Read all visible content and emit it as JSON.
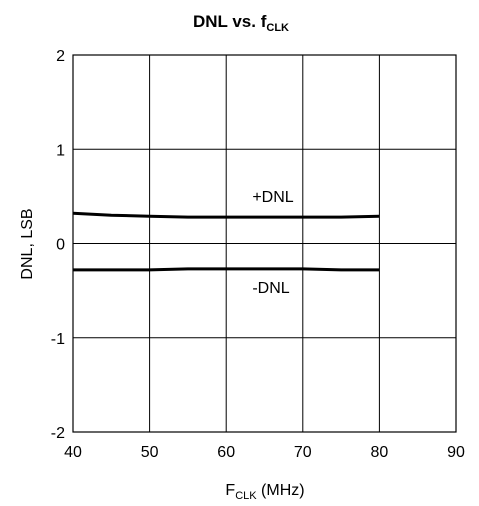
{
  "chart_data": {
    "type": "line",
    "title_main": "DNL vs. f",
    "title_sub": "CLK",
    "xlabel_main": "F",
    "xlabel_sub": "CLK",
    "xlabel_unit": " (MHz)",
    "ylabel": "DNL, LSB",
    "xlim": [
      40,
      90
    ],
    "ylim": [
      -2,
      2
    ],
    "xticks": [
      40,
      50,
      60,
      70,
      80,
      90
    ],
    "yticks": [
      2,
      1,
      0,
      -1,
      -2
    ],
    "grid": true,
    "series": [
      {
        "name": "+DNL",
        "x": [
          40,
          45,
          50,
          55,
          60,
          65,
          70,
          75,
          80
        ],
        "y": [
          0.32,
          0.3,
          0.29,
          0.28,
          0.28,
          0.28,
          0.28,
          0.28,
          0.29
        ]
      },
      {
        "name": "-DNL",
        "x": [
          40,
          45,
          50,
          55,
          60,
          65,
          70,
          75,
          80
        ],
        "y": [
          -0.28,
          -0.28,
          -0.28,
          -0.27,
          -0.27,
          -0.27,
          -0.27,
          -0.28,
          -0.28
        ]
      }
    ]
  }
}
